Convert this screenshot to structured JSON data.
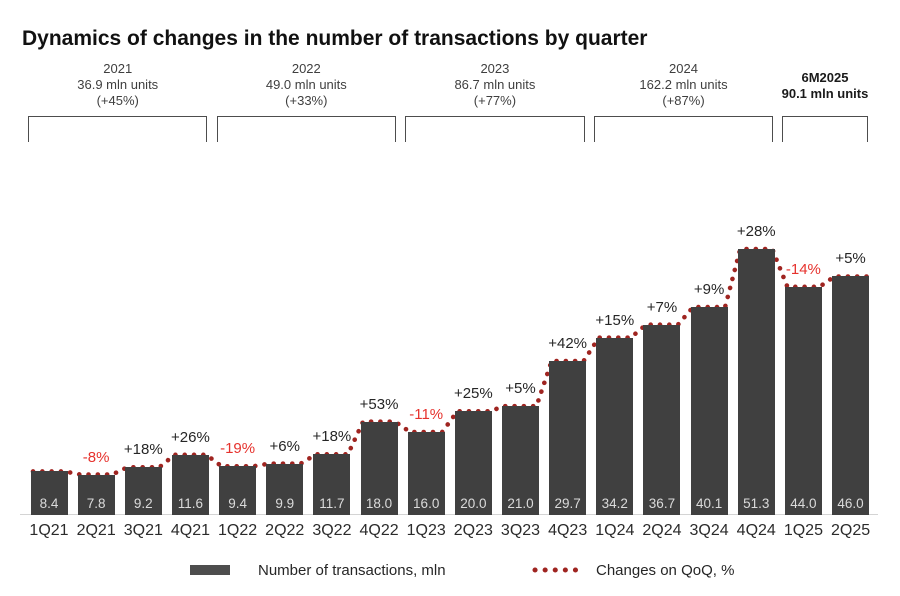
{
  "title": "Dynamics of changes in the number of transactions by quarter",
  "colors": {
    "bar": "#404040",
    "dot_line": "#9f2420",
    "positive_label": "#262626",
    "negative_label": "#e6322d",
    "bar_value_text": "#dbdbdb",
    "bracket": "#4d4d4d"
  },
  "year_groups": [
    {
      "label": "2021",
      "total": "36.9 mln units",
      "growth": "(+45%)",
      "bold": false,
      "bars": 4
    },
    {
      "label": "2022",
      "total": "49.0 mln units",
      "growth": "(+33%)",
      "bold": false,
      "bars": 4
    },
    {
      "label": "2023",
      "total": "86.7 mln units",
      "growth": "(+77%)",
      "bold": false,
      "bars": 4
    },
    {
      "label": "2024",
      "total": "162.2 mln units",
      "growth": "(+87%)",
      "bold": false,
      "bars": 4
    },
    {
      "label": "6M2025",
      "total": "90.1 mln units",
      "growth": "",
      "bold": true,
      "bars": 2
    }
  ],
  "chart_data": {
    "type": "bar",
    "title": "Dynamics of changes in the number of transactions by quarter",
    "categories": [
      "1Q21",
      "2Q21",
      "3Q21",
      "4Q21",
      "1Q22",
      "2Q22",
      "3Q22",
      "4Q22",
      "1Q23",
      "2Q23",
      "3Q23",
      "4Q23",
      "1Q24",
      "2Q24",
      "3Q24",
      "4Q24",
      "1Q25",
      "2Q25"
    ],
    "series": [
      {
        "name": "Number of transactions, mln",
        "type": "bar",
        "values": [
          8.4,
          7.8,
          9.2,
          11.6,
          9.4,
          9.9,
          11.7,
          18.0,
          16.0,
          20.0,
          21.0,
          29.7,
          34.2,
          36.7,
          40.1,
          51.3,
          44.0,
          46.0
        ]
      },
      {
        "name": "Changes on QoQ, %",
        "type": "dotted-line",
        "values": [
          null,
          -8,
          18,
          26,
          -19,
          6,
          18,
          53,
          -11,
          25,
          5,
          42,
          15,
          7,
          9,
          28,
          -14,
          5
        ]
      }
    ],
    "bar_value_labels": [
      "8.4",
      "7.8",
      "9.2",
      "11.6",
      "9.4",
      "9.9",
      "11.7",
      "18.0",
      "16.0",
      "20.0",
      "21.0",
      "29.7",
      "34.2",
      "36.7",
      "40.1",
      "51.3",
      "44.0",
      "46.0"
    ],
    "change_labels": [
      "",
      "-8%",
      "+18%",
      "+26%",
      "-19%",
      "+6%",
      "+18%",
      "+53%",
      "-11%",
      "+25%",
      "+5%",
      "+42%",
      "+15%",
      "+7%",
      "+9%",
      "+28%",
      "-14%",
      "+5%"
    ],
    "ylim": [
      0,
      55
    ],
    "grid": false,
    "legend_position": "bottom"
  },
  "legend": {
    "items": [
      {
        "label": "Number of transactions, mln",
        "swatch": "bar"
      },
      {
        "label": "Changes on QoQ, %",
        "swatch": "dots"
      }
    ]
  }
}
